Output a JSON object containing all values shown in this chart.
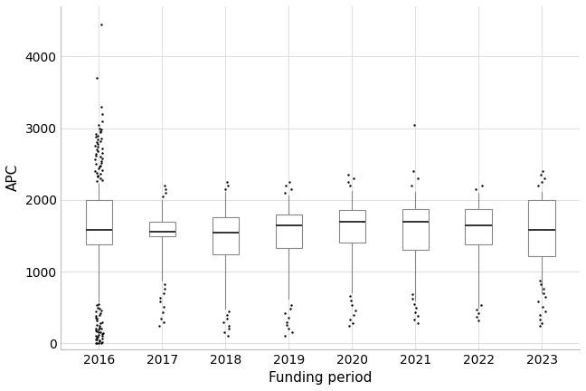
{
  "title": "",
  "xlabel": "Funding period",
  "ylabel": "APC",
  "years": [
    2016,
    2017,
    2018,
    2019,
    2020,
    2021,
    2022,
    2023
  ],
  "boxes": [
    {
      "year": 2016,
      "q1": 1380,
      "median": 1580,
      "q3": 2000,
      "whisker_low": 590,
      "whisker_high": 2220,
      "outliers": [
        4450,
        3700,
        3300,
        3200,
        3100,
        3050,
        3000,
        2980,
        2960,
        2940,
        2920,
        2900,
        2880,
        2860,
        2840,
        2820,
        2800,
        2780,
        2760,
        2740,
        2720,
        2700,
        2680,
        2660,
        2640,
        2620,
        2600,
        2580,
        2560,
        2540,
        2520,
        2500,
        2480,
        2460,
        2440,
        2420,
        2400,
        2380,
        2360,
        2340,
        2320,
        2300,
        2280,
        2260,
        550,
        530,
        500,
        480,
        460,
        440,
        420,
        400,
        380,
        360,
        340,
        320,
        300,
        280,
        260,
        240,
        220,
        210,
        200,
        190,
        180,
        170,
        160,
        150,
        140,
        130,
        120,
        110,
        100,
        90,
        80,
        70,
        60,
        50,
        40,
        30,
        20,
        10,
        5,
        2,
        0
      ]
    },
    {
      "year": 2017,
      "q1": 1490,
      "median": 1560,
      "q3": 1690,
      "whisker_low": 870,
      "whisker_high": 2000,
      "outliers": [
        2050,
        2100,
        2150,
        2200,
        240,
        290,
        350,
        430,
        510,
        580,
        640,
        700,
        760,
        820
      ]
    },
    {
      "year": 2018,
      "q1": 1235,
      "median": 1550,
      "q3": 1760,
      "whisker_low": 480,
      "whisker_high": 2110,
      "outliers": [
        2150,
        2200,
        2250,
        110,
        150,
        200,
        240,
        290,
        340,
        390,
        440
      ]
    },
    {
      "year": 2019,
      "q1": 1335,
      "median": 1640,
      "q3": 1800,
      "whisker_low": 620,
      "whisker_high": 2060,
      "outliers": [
        2100,
        2150,
        2200,
        2250,
        110,
        150,
        200,
        250,
        300,
        360,
        420,
        480,
        540
      ]
    },
    {
      "year": 2020,
      "q1": 1400,
      "median": 1690,
      "q3": 1860,
      "whisker_low": 710,
      "whisker_high": 2120,
      "outliers": [
        2200,
        2250,
        2300,
        2350,
        240,
        280,
        330,
        390,
        460,
        530,
        600,
        660
      ]
    },
    {
      "year": 2021,
      "q1": 1310,
      "median": 1700,
      "q3": 1870,
      "whisker_low": 600,
      "whisker_high": 2110,
      "outliers": [
        2200,
        2300,
        2400,
        3050,
        280,
        330,
        380,
        430,
        490,
        550,
        620,
        680
      ]
    },
    {
      "year": 2022,
      "q1": 1380,
      "median": 1645,
      "q3": 1870,
      "whisker_low": 495,
      "whisker_high": 2100,
      "outliers": [
        2150,
        2200,
        320,
        370,
        420,
        470,
        530
      ]
    },
    {
      "year": 2023,
      "q1": 1210,
      "median": 1585,
      "q3": 2000,
      "whisker_low": 700,
      "whisker_high": 2110,
      "outliers": [
        2200,
        2250,
        2300,
        2350,
        2400,
        240,
        280,
        330,
        390,
        450,
        510,
        580,
        650,
        700,
        760,
        820,
        880
      ]
    }
  ],
  "ylim": [
    -80,
    4700
  ],
  "yticks": [
    0,
    1000,
    2000,
    3000,
    4000
  ],
  "box_color": "white",
  "box_edgecolor": "#888888",
  "median_color": "#333333",
  "whisker_color": "#888888",
  "outlier_color": "black",
  "background_color": "white",
  "grid_color": "#e0e0e0",
  "box_width": 0.42,
  "axis_fontsize": 11,
  "tick_fontsize": 10
}
